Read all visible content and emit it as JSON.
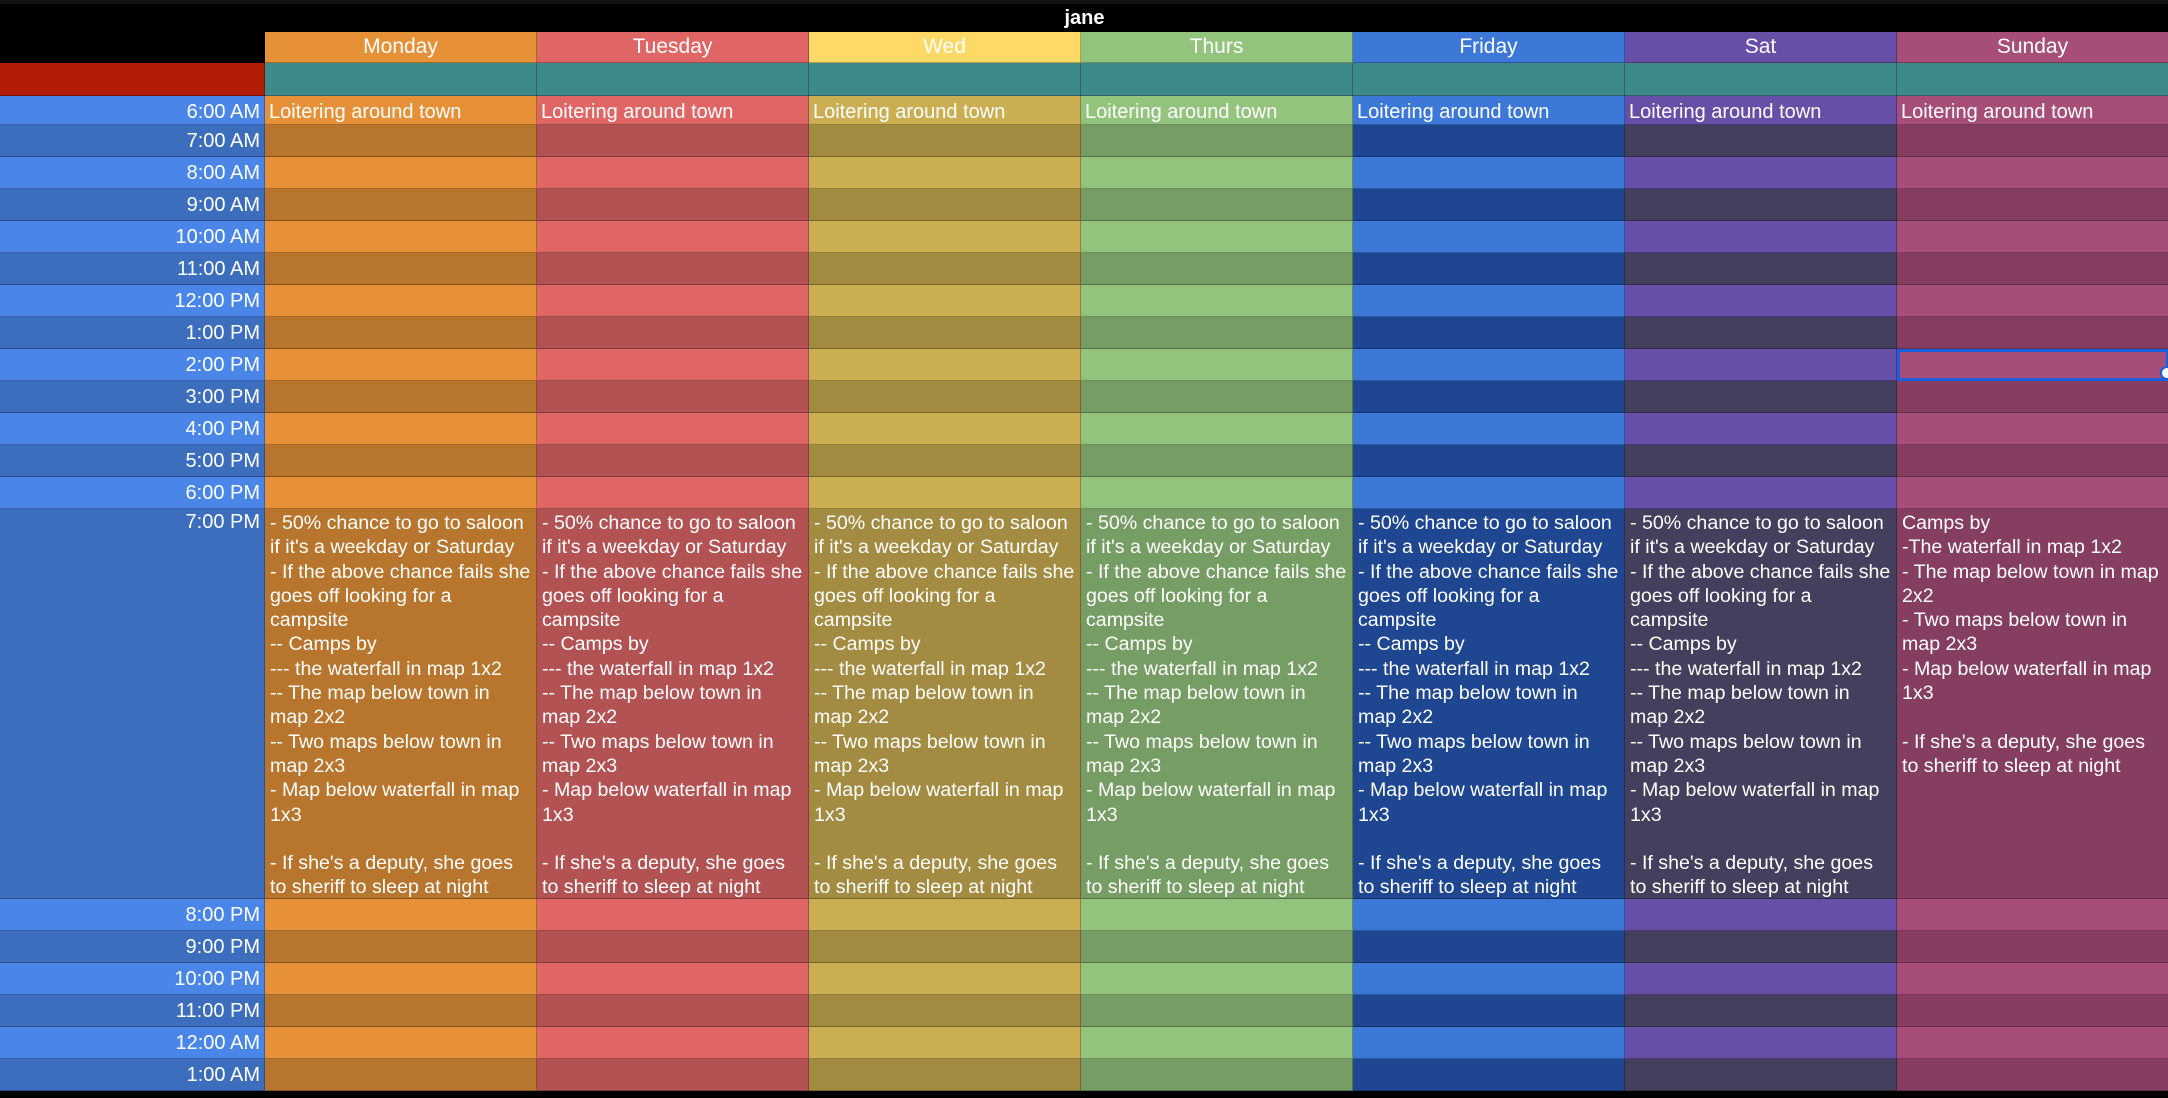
{
  "sheet": {
    "title": "jane",
    "days": [
      {
        "label": "Monday",
        "header_color": "#e69138",
        "light": "#e69138",
        "dark": "#b8752d"
      },
      {
        "label": "Tuesday",
        "header_color": "#e06666",
        "light": "#e06666",
        "dark": "#b35252"
      },
      {
        "label": "Wed",
        "header_color": "#ffd966",
        "light": "#ccae52",
        "dark": "#a38b41"
      },
      {
        "label": "Thurs",
        "header_color": "#93c47d",
        "light": "#93c47d",
        "dark": "#769d64"
      },
      {
        "label": "Friday",
        "header_color": "#3c78d8",
        "light": "#3c78d8",
        "dark": "#1f4691"
      },
      {
        "label": "Sat",
        "header_color": "#674ea7",
        "light": "#674ea7",
        "dark": "#433f5c"
      },
      {
        "label": "Sunday",
        "header_color": "#a64d79",
        "light": "#a64d79",
        "dark": "#853e61"
      }
    ],
    "accent_colors": {
      "red_row": "#b11d06",
      "teal_row": "#3d8a8a",
      "time_light": "#4a86e8",
      "time_dark": "#3d6dbd"
    },
    "time_slots": [
      "6:00 AM",
      "7:00 AM",
      "8:00 AM",
      "9:00 AM",
      "10:00 AM",
      "11:00 AM",
      "12:00 PM",
      "1:00 PM",
      "2:00 PM",
      "3:00 PM",
      "4:00 PM",
      "5:00 PM",
      "6:00 PM",
      "7:00 PM",
      "8:00 PM",
      "9:00 PM",
      "10:00 PM",
      "11:00 PM",
      "12:00 AM",
      "1:00 AM"
    ],
    "morning_activity": "Loitering around town",
    "evening_weekday": "- 50% chance to go to saloon if it's a weekday or Saturday\n- If the above chance fails she goes off looking for a campsite\n-- Camps by\n--- the waterfall in map 1x2\n-- The map below town in map 2x2\n-- Two maps below town in map 2x3\n- Map below waterfall in map 1x3\n\n- If she's a deputy, she goes to sheriff to sleep at night",
    "evening_sunday": "Camps by\n-The waterfall in map 1x2\n- The map below town in map 2x2\n- Two maps below town in map 2x3\n- Map below waterfall in map 1x3\n\n- If she's a deputy, she goes to sheriff to sleep at night",
    "selected": {
      "day_index": 6,
      "time_index": 8
    }
  }
}
